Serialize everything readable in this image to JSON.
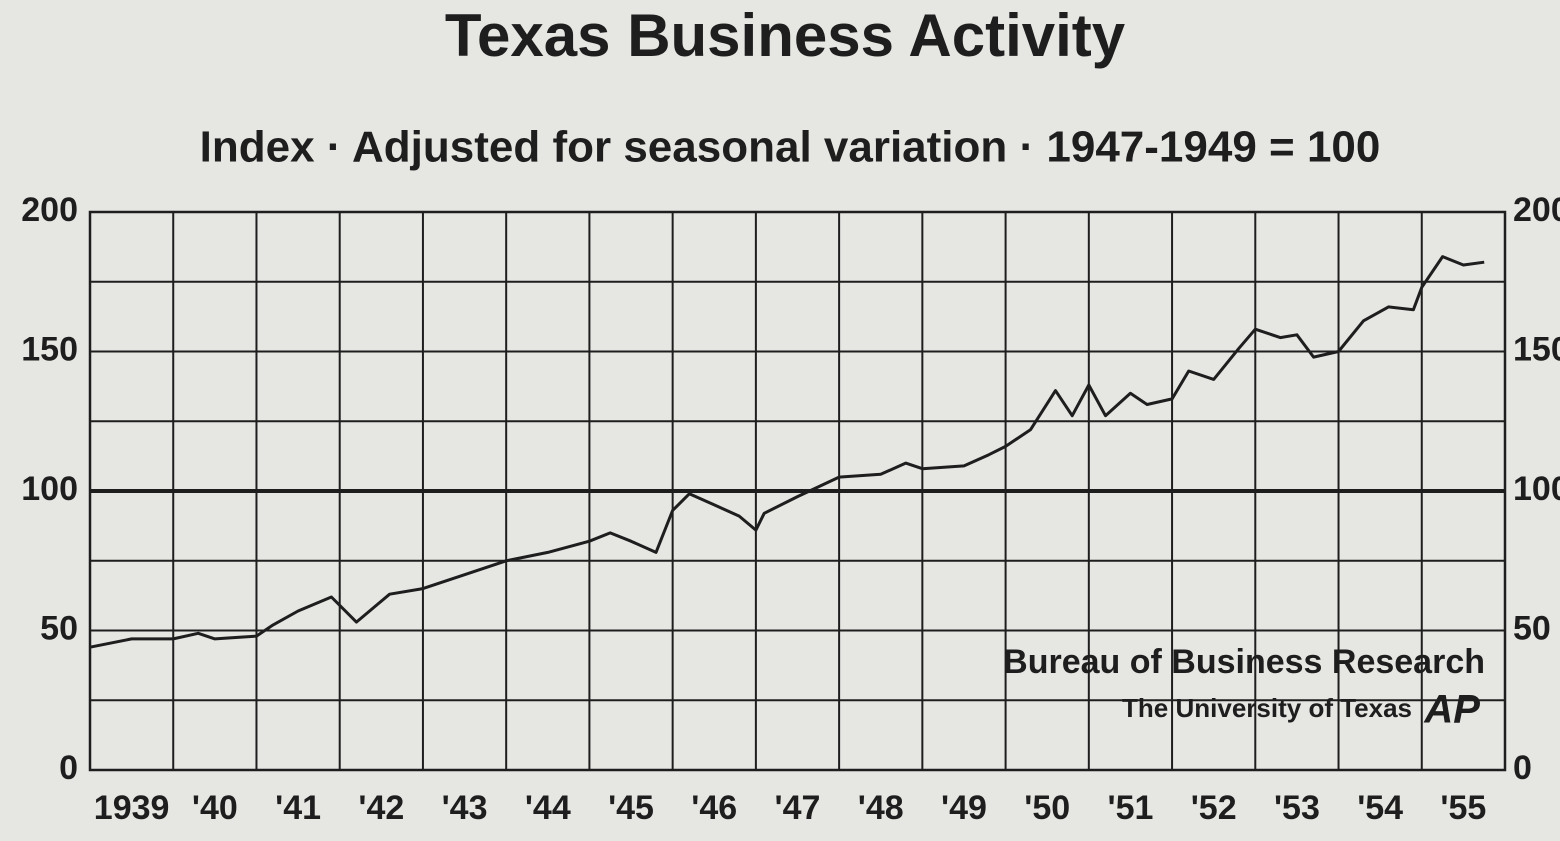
{
  "chart_data": {
    "type": "line",
    "title": "Texas Business Activity",
    "subtitle": "Index · Adjusted for seasonal variation · 1947-1949 = 100",
    "credit": "Bureau of Business Research",
    "credit_sub": "The University of Texas",
    "logo": "AP",
    "xlim": [
      1939,
      1956
    ],
    "xticks": [
      {
        "value": 1939,
        "label": "1939"
      },
      {
        "value": 1940,
        "label": "'40"
      },
      {
        "value": 1941,
        "label": "'41"
      },
      {
        "value": 1942,
        "label": "'42"
      },
      {
        "value": 1943,
        "label": "'43"
      },
      {
        "value": 1944,
        "label": "'44"
      },
      {
        "value": 1945,
        "label": "'45"
      },
      {
        "value": 1946,
        "label": "'46"
      },
      {
        "value": 1947,
        "label": "'47"
      },
      {
        "value": 1948,
        "label": "'48"
      },
      {
        "value": 1949,
        "label": "'49"
      },
      {
        "value": 1950,
        "label": "'50"
      },
      {
        "value": 1951,
        "label": "'51"
      },
      {
        "value": 1952,
        "label": "'52"
      },
      {
        "value": 1953,
        "label": "'53"
      },
      {
        "value": 1954,
        "label": "'54"
      },
      {
        "value": 1955,
        "label": "'55"
      }
    ],
    "ylim": [
      0,
      200
    ],
    "yticks": [
      0,
      50,
      100,
      150,
      200
    ],
    "minor_yticks": [
      25,
      75,
      125,
      175
    ],
    "reference_line": 100,
    "grid": true,
    "color": "#1e1e1e",
    "x": [
      1939.0,
      1939.5,
      1940.0,
      1940.3,
      1940.5,
      1941.0,
      1941.2,
      1941.5,
      1941.9,
      1942.2,
      1942.6,
      1943.0,
      1943.5,
      1944.0,
      1944.5,
      1945.0,
      1945.25,
      1945.5,
      1945.8,
      1946.0,
      1946.2,
      1946.5,
      1946.8,
      1947.0,
      1947.1,
      1947.5,
      1948.0,
      1948.5,
      1948.8,
      1949.0,
      1949.5,
      1949.8,
      1950.0,
      1950.3,
      1950.6,
      1950.8,
      1951.0,
      1951.2,
      1951.5,
      1951.7,
      1952.0,
      1952.2,
      1952.5,
      1952.8,
      1953.0,
      1953.3,
      1953.5,
      1953.7,
      1954.0,
      1954.3,
      1954.6,
      1954.9,
      1955.0,
      1955.25,
      1955.5,
      1955.75
    ],
    "values": [
      44,
      47,
      47,
      49,
      47,
      48,
      52,
      57,
      62,
      53,
      63,
      65,
      70,
      75,
      78,
      82,
      85,
      82,
      78,
      93,
      99,
      95,
      91,
      86,
      92,
      98,
      105,
      106,
      110,
      108,
      109,
      113,
      116,
      122,
      136,
      127,
      138,
      127,
      135,
      131,
      133,
      143,
      140,
      151,
      158,
      155,
      156,
      148,
      150,
      161,
      166,
      165,
      173,
      184,
      181,
      182
    ]
  }
}
